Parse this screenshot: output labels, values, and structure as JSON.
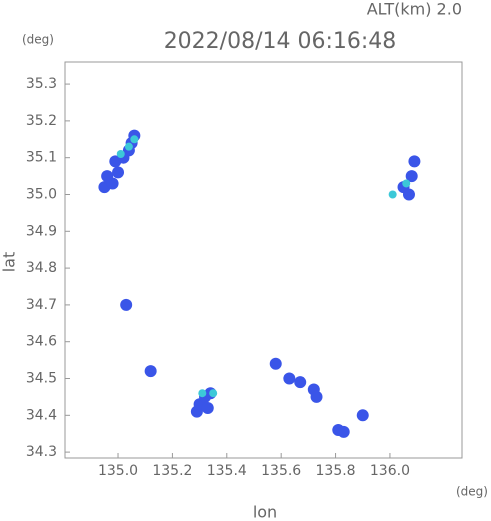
{
  "chart_data": {
    "type": "scatter",
    "title": "2022/08/14 06:16:48",
    "subtitle": "ALT(km) 2.0",
    "x_label": "lon",
    "y_label": "lat",
    "x_unit": "(deg)",
    "y_unit": "(deg)",
    "xlim": [
      134.805,
      136.265
    ],
    "ylim": [
      34.284,
      35.36
    ],
    "xticks": [
      {
        "value": 135.0,
        "label": "135.0"
      },
      135.2,
      135.4,
      135.6,
      135.8,
      {
        "value": 136.0,
        "label": "136.0"
      }
    ],
    "yticks": [
      34.3,
      34.4,
      34.5,
      34.6,
      34.7,
      34.8,
      34.9,
      {
        "value": 35.0,
        "label": "35.0"
      },
      35.1,
      35.2,
      35.3
    ],
    "series": [
      {
        "color": "#3a55e8",
        "x": [
          134.95,
          134.98,
          134.96,
          135.0,
          134.99,
          135.02,
          135.04,
          135.05,
          135.06,
          135.03,
          135.12,
          135.29,
          135.3,
          135.32,
          135.34,
          135.33,
          135.58,
          135.63,
          135.67,
          135.72,
          135.73,
          135.81,
          135.83,
          135.9,
          136.05,
          136.07,
          136.09,
          136.08
        ],
        "values": [
          35.02,
          35.03,
          35.05,
          35.06,
          35.09,
          35.1,
          35.12,
          35.14,
          35.16,
          34.7,
          34.52,
          34.41,
          34.43,
          34.45,
          34.46,
          34.42,
          34.54,
          34.5,
          34.49,
          34.47,
          34.45,
          34.36,
          34.355,
          34.4,
          35.02,
          35.0,
          35.09,
          35.05
        ]
      },
      {
        "color": "#3cc8d8",
        "x": [
          135.01,
          135.04,
          135.06,
          135.35,
          135.31,
          136.06,
          136.01
        ],
        "values": [
          35.11,
          35.13,
          35.15,
          34.46,
          34.46,
          35.03,
          35.0
        ]
      }
    ]
  }
}
